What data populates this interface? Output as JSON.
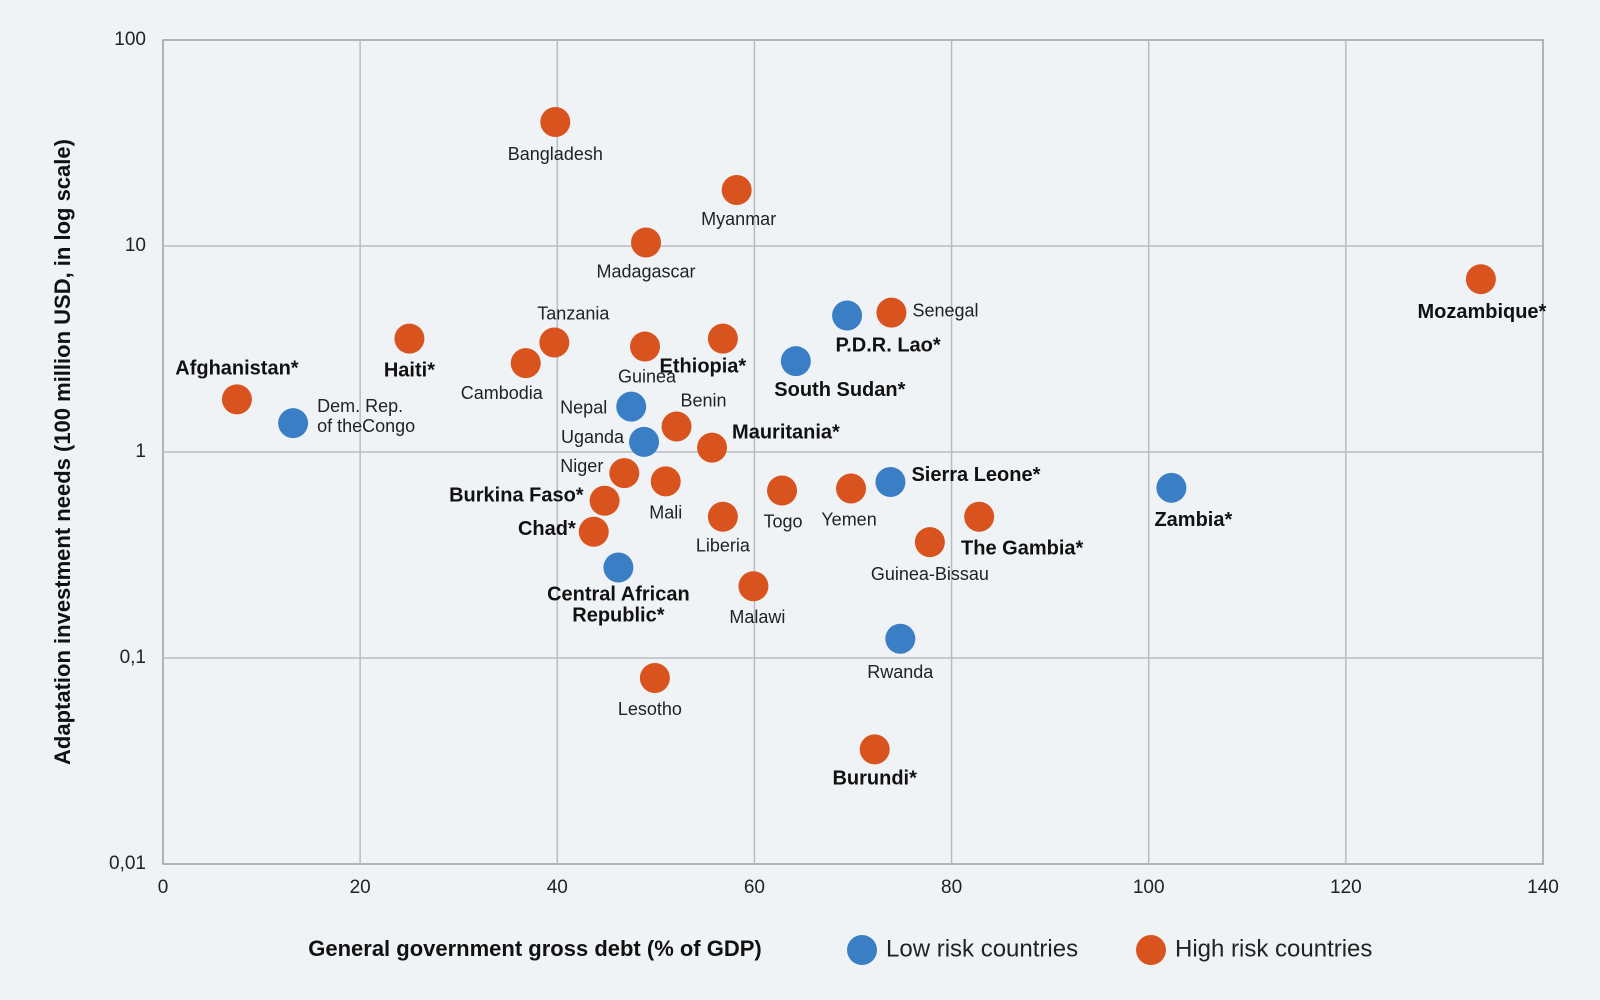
{
  "chart_data": {
    "type": "scatter",
    "title": "",
    "xlabel": "General government gross debt (% of GDP)",
    "ylabel": "Adaptation investment needs (100 million USD, in log scale)",
    "xlim": [
      0,
      140
    ],
    "ylim": [
      0.01,
      100
    ],
    "y_scale": "log",
    "grid": true,
    "x_ticks": [
      "0",
      "20",
      "40",
      "60",
      "80",
      "100",
      "120",
      "140"
    ],
    "y_ticks": [
      "100",
      "10",
      "1",
      "0,1",
      "0,01"
    ],
    "legend_position": "bottom",
    "series": [
      {
        "name": "Low risk countries",
        "color": "#3a7fc6",
        "points": [
          {
            "label": "Dem. Rep. of theCongo",
            "x": 13.2,
            "y": 1.38,
            "bold": false
          },
          {
            "label": "Nepal",
            "x": 47.5,
            "y": 1.66,
            "bold": false
          },
          {
            "label": "Uganda",
            "x": 48.8,
            "y": 1.12,
            "bold": false
          },
          {
            "label": "Central African Republic*",
            "x": 46.2,
            "y": 0.275,
            "bold": true
          },
          {
            "label": "South Sudan*",
            "x": 64.2,
            "y": 2.76,
            "bold": true
          },
          {
            "label": "P.D.R. Lao*",
            "x": 69.4,
            "y": 4.6,
            "bold": true
          },
          {
            "label": "Sierra Leone*",
            "x": 73.8,
            "y": 0.715,
            "bold": true
          },
          {
            "label": "Rwanda",
            "x": 74.8,
            "y": 0.124,
            "bold": false
          },
          {
            "label": "Zambia*",
            "x": 102.3,
            "y": 0.67,
            "bold": true
          }
        ]
      },
      {
        "name": "High risk countries",
        "color": "#d9531e",
        "points": [
          {
            "label": "Afghanistan*",
            "x": 7.5,
            "y": 1.8,
            "bold": true
          },
          {
            "label": "Haiti*",
            "x": 25.0,
            "y": 3.55,
            "bold": true
          },
          {
            "label": "Cambodia",
            "x": 36.8,
            "y": 2.7,
            "bold": false
          },
          {
            "label": "Tanzania",
            "x": 39.7,
            "y": 3.4,
            "bold": false
          },
          {
            "label": "Bangladesh",
            "x": 39.8,
            "y": 40.0,
            "bold": false
          },
          {
            "label": "Madagascar",
            "x": 49.0,
            "y": 10.4,
            "bold": false
          },
          {
            "label": "Myanmar",
            "x": 58.2,
            "y": 18.7,
            "bold": false
          },
          {
            "label": "Guinea",
            "x": 48.9,
            "y": 3.25,
            "bold": false
          },
          {
            "label": "Ethiopia*",
            "x": 56.8,
            "y": 3.55,
            "bold": true
          },
          {
            "label": "Benin",
            "x": 52.1,
            "y": 1.33,
            "bold": false
          },
          {
            "label": "Mauritania*",
            "x": 55.7,
            "y": 1.05,
            "bold": true
          },
          {
            "label": "Niger",
            "x": 46.8,
            "y": 0.79,
            "bold": false
          },
          {
            "label": "Mali",
            "x": 51.0,
            "y": 0.72,
            "bold": false
          },
          {
            "label": "Burkina Faso*",
            "x": 44.8,
            "y": 0.58,
            "bold": true
          },
          {
            "label": "Chad*",
            "x": 43.7,
            "y": 0.41,
            "bold": true
          },
          {
            "label": "Liberia",
            "x": 56.8,
            "y": 0.485,
            "bold": false
          },
          {
            "label": "Togo",
            "x": 62.8,
            "y": 0.65,
            "bold": false
          },
          {
            "label": "Yemen",
            "x": 69.8,
            "y": 0.665,
            "bold": false
          },
          {
            "label": "Malawi",
            "x": 59.9,
            "y": 0.223,
            "bold": false
          },
          {
            "label": "Lesotho",
            "x": 49.9,
            "y": 0.08,
            "bold": false
          },
          {
            "label": "Burundi*",
            "x": 72.2,
            "y": 0.036,
            "bold": true
          },
          {
            "label": "Senegal",
            "x": 73.9,
            "y": 4.75,
            "bold": false
          },
          {
            "label": "Guinea-Bissau",
            "x": 77.8,
            "y": 0.365,
            "bold": false
          },
          {
            "label": "The Gambia*",
            "x": 82.8,
            "y": 0.485,
            "bold": true
          },
          {
            "label": "Mozambique*",
            "x": 133.7,
            "y": 6.9,
            "bold": true
          }
        ]
      }
    ]
  }
}
